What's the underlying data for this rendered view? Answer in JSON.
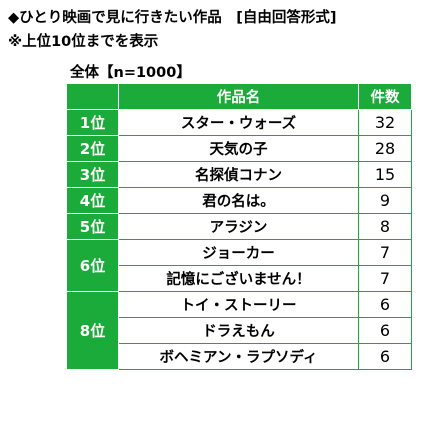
{
  "header": {
    "title": "◆ひとり映画で見に行きたい作品　[自由回答形式]",
    "subtitle": "※上位10位までを表示",
    "sample": "全体【n=1000】"
  },
  "table": {
    "col_title": "作品名",
    "col_count": "件数",
    "rows": [
      {
        "rank": "1位",
        "title": "スター・ウォーズ",
        "count": "32"
      },
      {
        "rank": "2位",
        "title": "天気の子",
        "count": "28"
      },
      {
        "rank": "3位",
        "title": "名探偵コナン",
        "count": "15"
      },
      {
        "rank": "4位",
        "title": "君の名は。",
        "count": "9"
      },
      {
        "rank": "5位",
        "title": "アラジン",
        "count": "8"
      },
      {
        "rank": "6位",
        "title": "ジョーカー",
        "count": "7"
      },
      {
        "rank": "",
        "title": "記憶にございません！",
        "count": "7"
      },
      {
        "rank": "8位",
        "title": "トイ・ストーリー",
        "count": "6"
      },
      {
        "rank": "",
        "title": "ドラえもん",
        "count": "6"
      },
      {
        "rank": "",
        "title": "ボヘミアン・ラプソディ",
        "count": "6"
      }
    ]
  },
  "colors": {
    "accent": "#1aab3a"
  }
}
